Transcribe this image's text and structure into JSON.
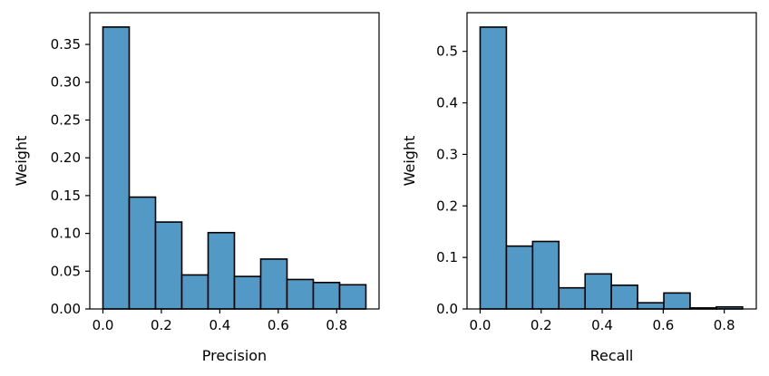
{
  "chart_data": [
    {
      "type": "bar",
      "title": "",
      "xlabel": "Precision",
      "ylabel": "Weight",
      "xlim": [
        -0.045,
        0.945
      ],
      "ylim": [
        0,
        0.392
      ],
      "xticks": [
        "0.0",
        "0.2",
        "0.4",
        "0.6",
        "0.8"
      ],
      "yticks": [
        "0.00",
        "0.05",
        "0.10",
        "0.15",
        "0.20",
        "0.25",
        "0.30",
        "0.35"
      ],
      "bin_edges": [
        0.0,
        0.09,
        0.18,
        0.27,
        0.36,
        0.45,
        0.54,
        0.63,
        0.72,
        0.81,
        0.9
      ],
      "values": [
        0.373,
        0.148,
        0.115,
        0.045,
        0.101,
        0.043,
        0.066,
        0.039,
        0.035,
        0.032
      ],
      "bar_color": "#5399c6",
      "edge_color": "#000000",
      "grid": false
    },
    {
      "type": "bar",
      "title": "",
      "xlabel": "Recall",
      "ylabel": "Weight",
      "xlim": [
        -0.043,
        0.905
      ],
      "ylim": [
        0,
        0.575
      ],
      "xticks": [
        "0.0",
        "0.2",
        "0.4",
        "0.6",
        "0.8"
      ],
      "yticks": [
        "0.0",
        "0.1",
        "0.2",
        "0.3",
        "0.4",
        "0.5"
      ],
      "bin_edges": [
        0.0,
        0.086,
        0.172,
        0.258,
        0.344,
        0.43,
        0.516,
        0.602,
        0.688,
        0.774,
        0.86
      ],
      "values": [
        0.547,
        0.122,
        0.131,
        0.041,
        0.068,
        0.046,
        0.012,
        0.031,
        0.002,
        0.004
      ],
      "bar_color": "#5399c6",
      "edge_color": "#000000",
      "grid": false
    }
  ]
}
